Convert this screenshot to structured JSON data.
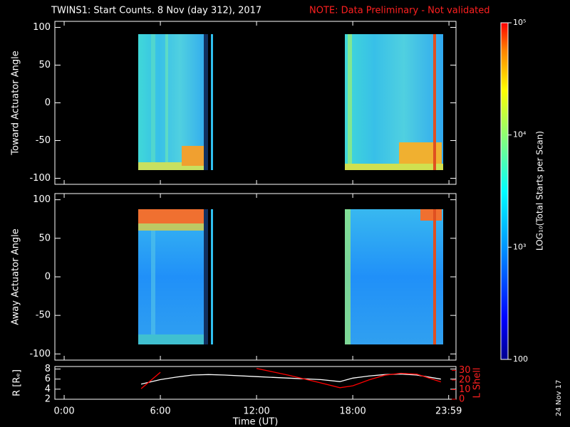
{
  "chart_data": [
    {
      "type": "heatmap",
      "title": "TWINS1: Start Counts.  8 Nov (day 312), 2017",
      "note": "NOTE: Data Preliminary - Not validated",
      "ylabel": "Toward Actuator Angle",
      "ylim": [
        -108,
        108
      ],
      "yticks": [
        -100,
        -50,
        0,
        50,
        100
      ],
      "xlim": [
        -0.58,
        24.44
      ],
      "colorbar": {
        "label": "LOG₁₀(Total Starts per Scan)",
        "lim": [
          100,
          100000
        ],
        "log": true,
        "ticks": [
          {
            "value": 100,
            "label": "100"
          },
          {
            "value": 1000,
            "label": "10³"
          },
          {
            "value": 10000,
            "label": "10⁴"
          },
          {
            "value": 100000,
            "label": "10⁵"
          }
        ]
      }
    },
    {
      "type": "heatmap",
      "ylabel": "Away Actuator Angle",
      "ylim": [
        -108,
        108
      ],
      "yticks": [
        -100,
        -50,
        0,
        50,
        100
      ],
      "xlim": [
        -0.58,
        24.44
      ]
    },
    {
      "type": "line",
      "ylabel": "R [Rₑ]",
      "y2label": "L Shell",
      "xlabel": "Time (UT)",
      "xlim": [
        -0.58,
        24.44
      ],
      "xticks": [
        {
          "value": 0,
          "label": "0:00"
        },
        {
          "value": 6,
          "label": "6:00"
        },
        {
          "value": 12,
          "label": "12:00"
        },
        {
          "value": 18,
          "label": "18:00"
        },
        {
          "value": 23.983,
          "label": "23:59"
        }
      ],
      "ylim": [
        2,
        8.5
      ],
      "yticks": [
        2,
        4,
        6,
        8
      ],
      "y2lim": [
        0,
        34
      ],
      "y2ticks": [
        0,
        10,
        20,
        30
      ],
      "x": [
        4.8,
        6,
        7,
        8,
        9,
        10,
        12,
        14,
        16,
        17.2,
        18,
        19,
        20,
        21,
        22,
        23.5
      ],
      "series": [
        {
          "name": "R",
          "color": "#ffffff",
          "values": [
            5.0,
            5.9,
            6.4,
            6.8,
            6.9,
            6.8,
            6.5,
            6.2,
            5.9,
            5.5,
            6.2,
            6.6,
            6.9,
            7.0,
            6.8,
            6.0
          ]
        },
        {
          "name": "L Shell",
          "color": "#ff0000",
          "axis": "y2",
          "values": [
            11,
            28,
            null,
            null,
            null,
            null,
            32,
            25,
            17,
            12,
            14,
            20,
            25,
            27,
            26,
            18
          ]
        }
      ]
    }
  ],
  "stamp": "24 Nov 17"
}
